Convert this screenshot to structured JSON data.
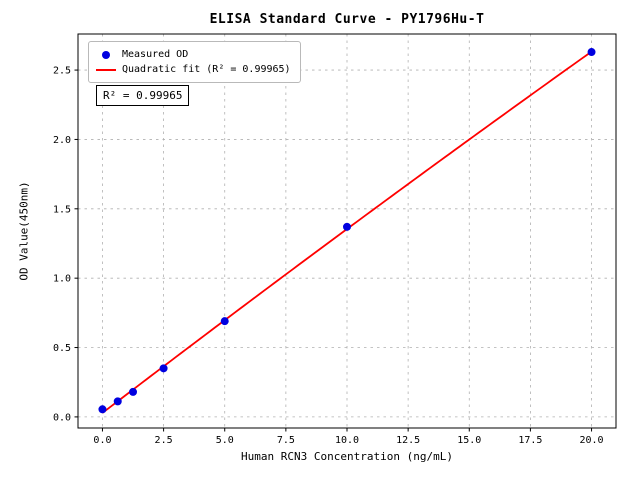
{
  "chart_data": {
    "type": "scatter",
    "title": "ELISA Standard Curve - PY1796Hu-T",
    "xlabel": "Human RCN3 Concentration (ng/mL)",
    "ylabel": "OD Value(450nm)",
    "xlim": [
      -1.0,
      21.0
    ],
    "ylim": [
      -0.08,
      2.76
    ],
    "x_ticks": [
      0.0,
      2.5,
      5.0,
      7.5,
      10.0,
      12.5,
      15.0,
      17.5,
      20.0
    ],
    "x_tick_labels": [
      "0.0",
      "2.5",
      "5.0",
      "7.5",
      "10.0",
      "12.5",
      "15.0",
      "17.5",
      "20.0"
    ],
    "y_ticks": [
      0.0,
      0.5,
      1.0,
      1.5,
      2.0,
      2.5
    ],
    "y_tick_labels": [
      "0.0",
      "0.5",
      "1.0",
      "1.5",
      "2.0",
      "2.5"
    ],
    "grid": true,
    "legend_position": "upper-left",
    "series": [
      {
        "name": "Measured OD",
        "type": "scatter",
        "color": "#0000e0",
        "x": [
          0.0,
          0.625,
          1.25,
          2.5,
          5.0,
          10.0,
          20.0
        ],
        "y": [
          0.055,
          0.112,
          0.18,
          0.35,
          0.69,
          1.37,
          2.63
        ]
      },
      {
        "name": "Quadratic fit (R² = 0.99965)",
        "type": "line",
        "fit": "quadratic",
        "color": "#ff0000",
        "x_range": [
          0.0,
          20.0
        ]
      }
    ],
    "annotation": "R² = 0.99965",
    "r_squared": "0.99965",
    "colors": {
      "scatter": "#0000e0",
      "fit_line": "#ff0000",
      "grid": "#b0b0b0",
      "frame": "#000000",
      "background": "#ffffff"
    }
  }
}
